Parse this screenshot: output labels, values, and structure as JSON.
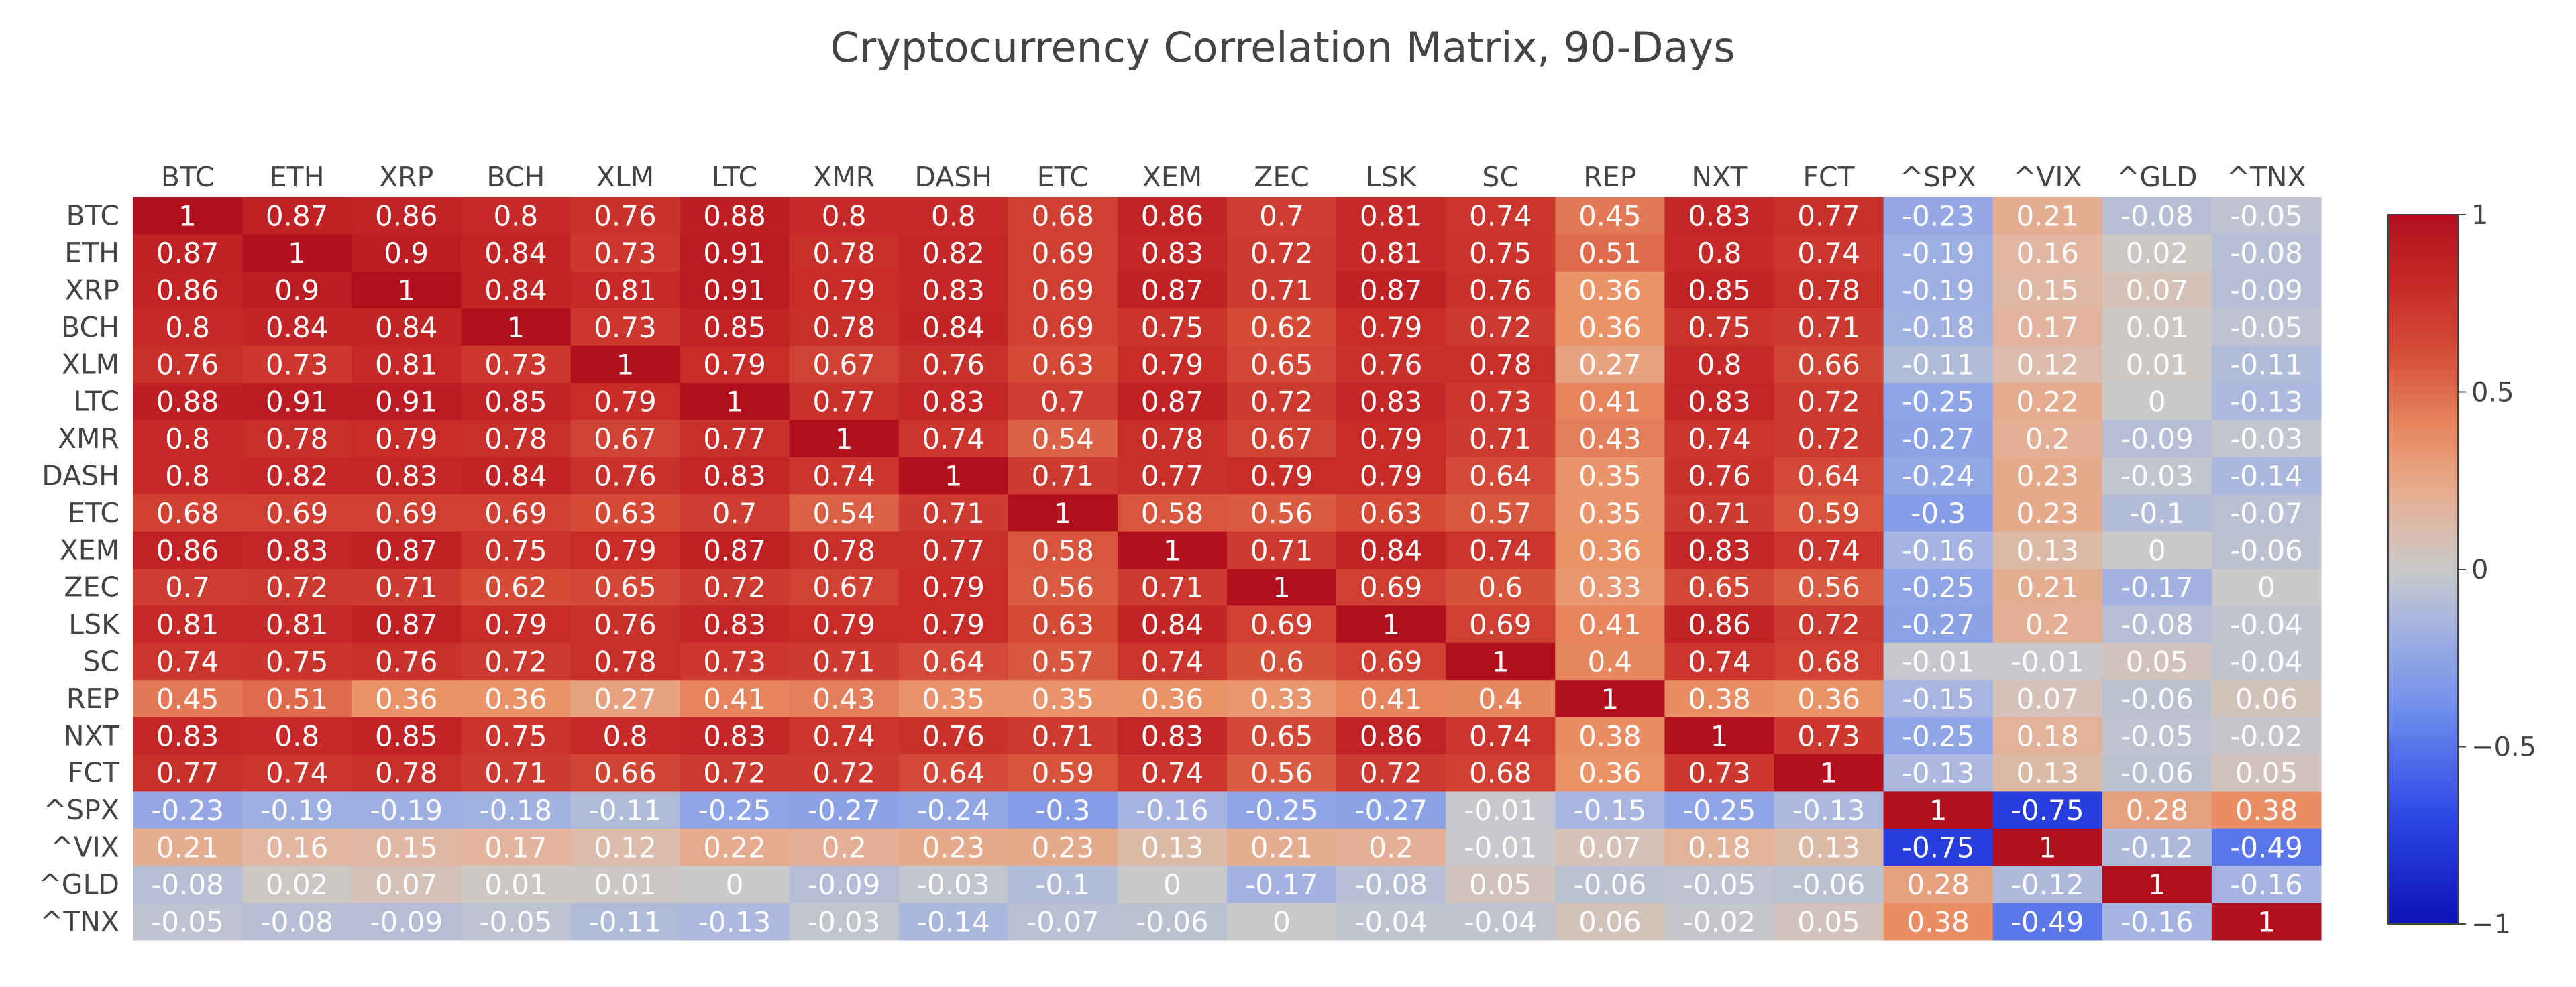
{
  "chart_data": {
    "type": "heatmap",
    "title": "Cryptocurrency Correlation Matrix, 90-Days",
    "xlabel": "",
    "ylabel": "",
    "x_categories": [
      "BTC",
      "ETH",
      "XRP",
      "BCH",
      "XLM",
      "LTC",
      "XMR",
      "DASH",
      "ETC",
      "XEM",
      "ZEC",
      "LSK",
      "SC",
      "REP",
      "NXT",
      "FCT",
      "^SPX",
      "^VIX",
      "^GLD",
      "^TNX"
    ],
    "y_categories": [
      "BTC",
      "ETH",
      "XRP",
      "BCH",
      "XLM",
      "LTC",
      "XMR",
      "DASH",
      "ETC",
      "XEM",
      "ZEC",
      "LSK",
      "SC",
      "REP",
      "NXT",
      "FCT",
      "^SPX",
      "^VIX",
      "^GLD",
      "^TNX"
    ],
    "values": [
      [
        1,
        0.87,
        0.86,
        0.8,
        0.76,
        0.88,
        0.8,
        0.8,
        0.68,
        0.86,
        0.7,
        0.81,
        0.74,
        0.45,
        0.83,
        0.77,
        -0.23,
        0.21,
        -0.08,
        -0.05
      ],
      [
        0.87,
        1,
        0.9,
        0.84,
        0.73,
        0.91,
        0.78,
        0.82,
        0.69,
        0.83,
        0.72,
        0.81,
        0.75,
        0.51,
        0.8,
        0.74,
        -0.19,
        0.16,
        0.02,
        -0.08
      ],
      [
        0.86,
        0.9,
        1,
        0.84,
        0.81,
        0.91,
        0.79,
        0.83,
        0.69,
        0.87,
        0.71,
        0.87,
        0.76,
        0.36,
        0.85,
        0.78,
        -0.19,
        0.15,
        0.07,
        -0.09
      ],
      [
        0.8,
        0.84,
        0.84,
        1,
        0.73,
        0.85,
        0.78,
        0.84,
        0.69,
        0.75,
        0.62,
        0.79,
        0.72,
        0.36,
        0.75,
        0.71,
        -0.18,
        0.17,
        0.01,
        -0.05
      ],
      [
        0.76,
        0.73,
        0.81,
        0.73,
        1,
        0.79,
        0.67,
        0.76,
        0.63,
        0.79,
        0.65,
        0.76,
        0.78,
        0.27,
        0.8,
        0.66,
        -0.11,
        0.12,
        0.01,
        -0.11
      ],
      [
        0.88,
        0.91,
        0.91,
        0.85,
        0.79,
        1,
        0.77,
        0.83,
        0.7,
        0.87,
        0.72,
        0.83,
        0.73,
        0.41,
        0.83,
        0.72,
        -0.25,
        0.22,
        0,
        -0.13
      ],
      [
        0.8,
        0.78,
        0.79,
        0.78,
        0.67,
        0.77,
        1,
        0.74,
        0.54,
        0.78,
        0.67,
        0.79,
        0.71,
        0.43,
        0.74,
        0.72,
        -0.27,
        0.2,
        -0.09,
        -0.03
      ],
      [
        0.8,
        0.82,
        0.83,
        0.84,
        0.76,
        0.83,
        0.74,
        1,
        0.71,
        0.77,
        0.79,
        0.79,
        0.64,
        0.35,
        0.76,
        0.64,
        -0.24,
        0.23,
        -0.03,
        -0.14
      ],
      [
        0.68,
        0.69,
        0.69,
        0.69,
        0.63,
        0.7,
        0.54,
        0.71,
        1,
        0.58,
        0.56,
        0.63,
        0.57,
        0.35,
        0.71,
        0.59,
        -0.3,
        0.23,
        -0.1,
        -0.07
      ],
      [
        0.86,
        0.83,
        0.87,
        0.75,
        0.79,
        0.87,
        0.78,
        0.77,
        0.58,
        1,
        0.71,
        0.84,
        0.74,
        0.36,
        0.83,
        0.74,
        -0.16,
        0.13,
        0,
        -0.06
      ],
      [
        0.7,
        0.72,
        0.71,
        0.62,
        0.65,
        0.72,
        0.67,
        0.79,
        0.56,
        0.71,
        1,
        0.69,
        0.6,
        0.33,
        0.65,
        0.56,
        -0.25,
        0.21,
        -0.17,
        0
      ],
      [
        0.81,
        0.81,
        0.87,
        0.79,
        0.76,
        0.83,
        0.79,
        0.79,
        0.63,
        0.84,
        0.69,
        1,
        0.69,
        0.41,
        0.86,
        0.72,
        -0.27,
        0.2,
        -0.08,
        -0.04
      ],
      [
        0.74,
        0.75,
        0.76,
        0.72,
        0.78,
        0.73,
        0.71,
        0.64,
        0.57,
        0.74,
        0.6,
        0.69,
        1,
        0.4,
        0.74,
        0.68,
        -0.01,
        -0.01,
        0.05,
        -0.04
      ],
      [
        0.45,
        0.51,
        0.36,
        0.36,
        0.27,
        0.41,
        0.43,
        0.35,
        0.35,
        0.36,
        0.33,
        0.41,
        0.4,
        1,
        0.38,
        0.36,
        -0.15,
        0.07,
        -0.06,
        0.06
      ],
      [
        0.83,
        0.8,
        0.85,
        0.75,
        0.8,
        0.83,
        0.74,
        0.76,
        0.71,
        0.83,
        0.65,
        0.86,
        0.74,
        0.38,
        1,
        0.73,
        -0.25,
        0.18,
        -0.05,
        -0.02
      ],
      [
        0.77,
        0.74,
        0.78,
        0.71,
        0.66,
        0.72,
        0.72,
        0.64,
        0.59,
        0.74,
        0.56,
        0.72,
        0.68,
        0.36,
        0.73,
        1,
        -0.13,
        0.13,
        -0.06,
        0.05
      ],
      [
        -0.23,
        -0.19,
        -0.19,
        -0.18,
        -0.11,
        -0.25,
        -0.27,
        -0.24,
        -0.3,
        -0.16,
        -0.25,
        -0.27,
        -0.01,
        -0.15,
        -0.25,
        -0.13,
        1,
        -0.75,
        0.28,
        0.38
      ],
      [
        0.21,
        0.16,
        0.15,
        0.17,
        0.12,
        0.22,
        0.2,
        0.23,
        0.23,
        0.13,
        0.21,
        0.2,
        -0.01,
        0.07,
        0.18,
        0.13,
        -0.75,
        1,
        -0.12,
        -0.49
      ],
      [
        -0.08,
        0.02,
        0.07,
        0.01,
        0.01,
        0,
        -0.09,
        -0.03,
        -0.1,
        0,
        -0.17,
        -0.08,
        0.05,
        -0.06,
        -0.05,
        -0.06,
        0.28,
        -0.12,
        1,
        -0.16
      ],
      [
        -0.05,
        -0.08,
        -0.09,
        -0.05,
        -0.11,
        -0.13,
        -0.03,
        -0.14,
        -0.07,
        -0.06,
        0,
        -0.04,
        -0.04,
        0.06,
        -0.02,
        0.05,
        0.38,
        -0.49,
        -0.16,
        1
      ]
    ],
    "zlim": [
      -1,
      1
    ],
    "colorscale": "RdBu-reversed (coolwarm)",
    "colorbar": {
      "ticks": [
        1,
        0.5,
        0,
        -0.5,
        -1
      ],
      "tick_labels": [
        "1",
        "0.5",
        "0",
        "−0.5",
        "−1"
      ]
    },
    "x_axis_position": "top",
    "grid": false,
    "legend": "colorbar-right"
  },
  "colors": {
    "low": "#0c12b8",
    "mid": "#c9c9c9",
    "high": "#b20f1e",
    "text": "#ffffff",
    "axis_text": "#444444"
  }
}
